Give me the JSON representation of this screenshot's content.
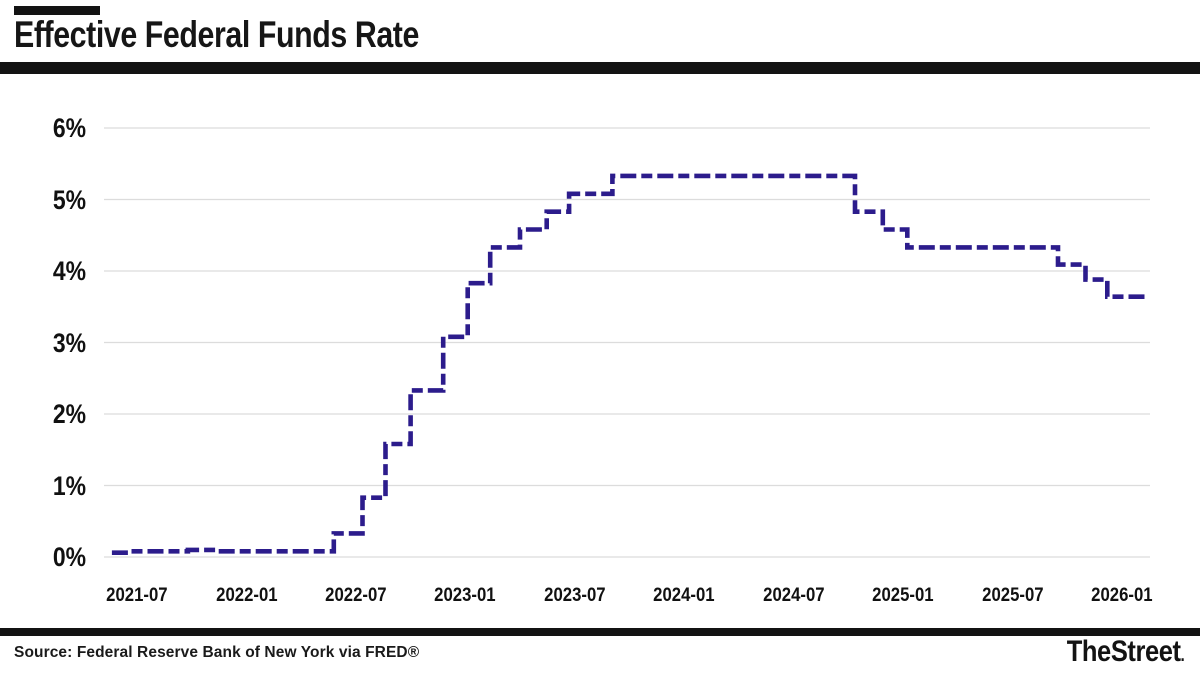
{
  "header": {
    "title": "Effective Federal Funds Rate"
  },
  "footer": {
    "source": "Source: Federal Reserve Bank of New York via FRED®",
    "brand": "TheStreet",
    "brand_suffix": "."
  },
  "chart_data": {
    "type": "line",
    "subtype": "step-after",
    "title": "Effective Federal Funds Rate",
    "xlabel": "",
    "ylabel": "",
    "unit": "percent",
    "grid": true,
    "legend": "none",
    "line_color": "#2c1c8c",
    "line_style": "dashed",
    "grid_color": "#dcdcdc",
    "ylim": [
      0,
      6
    ],
    "y_ticks": [
      "0%",
      "1%",
      "2%",
      "3%",
      "4%",
      "5%",
      "6%"
    ],
    "x_ticks": [
      "2021-07",
      "2022-01",
      "2022-07",
      "2023-01",
      "2023-07",
      "2024-01",
      "2024-07",
      "2025-01",
      "2025-07",
      "2026-01"
    ],
    "x_range": [
      "2021-05-20",
      "2026-02-13"
    ],
    "points": [
      [
        "2021-05-20",
        0.06
      ],
      [
        "2021-06-17",
        0.08
      ],
      [
        "2021-09-25",
        0.1
      ],
      [
        "2021-11-10",
        0.08
      ],
      [
        "2022-05-25",
        0.33
      ],
      [
        "2022-07-12",
        0.83
      ],
      [
        "2022-08-20",
        1.58
      ],
      [
        "2022-10-01",
        2.33
      ],
      [
        "2022-11-25",
        3.08
      ],
      [
        "2023-01-05",
        3.83
      ],
      [
        "2023-02-12",
        4.33
      ],
      [
        "2023-04-01",
        4.58
      ],
      [
        "2023-05-15",
        4.83
      ],
      [
        "2023-06-22",
        5.08
      ],
      [
        "2023-09-03",
        5.33
      ],
      [
        "2024-10-12",
        4.83
      ],
      [
        "2024-11-28",
        4.58
      ],
      [
        "2025-01-08",
        4.33
      ],
      [
        "2025-09-16",
        4.09
      ],
      [
        "2025-11-01",
        3.88
      ],
      [
        "2025-12-07",
        3.64
      ]
    ]
  }
}
